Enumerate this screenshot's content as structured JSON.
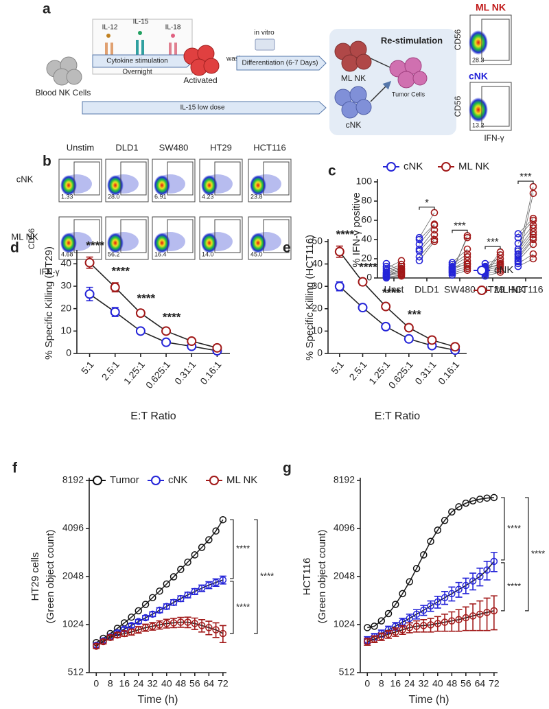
{
  "diagram": {
    "label": "a",
    "cytokines": [
      "IL-12",
      "IL-15",
      "IL-18"
    ],
    "stim_arrow": "Cytokine stimulation",
    "stim_time": "Overnight",
    "source": "Blood NK Cells",
    "activated": "Activated",
    "wash": "wash",
    "in_vitro": "in vitro",
    "diff_arrow": "Differentiation (6-7 Days)",
    "restim": "Re-stimulation",
    "ml_nk": "ML NK",
    "cnk": "cNK",
    "tumor": "Tumor Cells",
    "low_dose_arrow": "IL-15 low dose",
    "flow": [
      {
        "title": "ML NK",
        "percent": "28.3"
      },
      {
        "title": "cNK",
        "percent": "13.2"
      }
    ],
    "flow_y": "CD56",
    "flow_x": "IFN-γ"
  },
  "flow_grid": {
    "label": "b",
    "columns": [
      "Unstim",
      "DLD1",
      "SW480",
      "HT29",
      "HCT116"
    ],
    "rows": [
      {
        "name": "cNK",
        "values": [
          "1.33",
          "28.0",
          "6.91",
          "4.23",
          "23.8"
        ]
      },
      {
        "name": "ML NK",
        "values": [
          "4.68",
          "56.2",
          "16.4",
          "14.0",
          "45.0"
        ]
      }
    ],
    "y_label": "CD56",
    "x_label": "IFN-γ"
  },
  "chart_data": [
    {
      "type": "paired_scatter",
      "panel": "c",
      "y_label": "% IFN-γ positive",
      "legend": "top",
      "categories": [
        "Unst",
        "DLD1",
        "SW480",
        "HT29",
        "HCT116"
      ],
      "ylim": [
        0,
        100
      ],
      "yticks": [
        0,
        20,
        40,
        60,
        80,
        100
      ],
      "series": [
        {
          "name": "cNK",
          "color": "#2424d8",
          "values": [
            [
              0,
              1,
              2,
              3,
              4,
              5,
              6,
              8,
              10,
              12,
              15,
              2
            ],
            [
              18,
              22,
              28,
              30,
              35,
              40,
              42
            ],
            [
              3,
              5,
              7,
              9,
              10,
              12,
              14,
              16,
              8,
              6,
              11
            ],
            [
              2,
              4,
              6,
              8,
              10,
              12,
              15,
              5,
              7,
              9,
              11
            ],
            [
              12,
              15,
              18,
              20,
              22,
              25,
              28,
              30,
              36,
              42,
              46,
              17,
              24
            ]
          ]
        },
        {
          "name": "ML NK",
          "color": "#a11818",
          "values": [
            [
              2,
              3,
              5,
              6,
              8,
              10,
              12,
              14,
              18,
              4,
              7,
              9
            ],
            [
              38,
              40,
              45,
              50,
              55,
              56,
              68
            ],
            [
              8,
              10,
              12,
              15,
              18,
              22,
              25,
              30,
              42,
              44,
              14
            ],
            [
              6,
              8,
              10,
              12,
              14,
              17,
              20,
              24,
              27,
              15,
              13
            ],
            [
              20,
              25,
              35,
              40,
              42,
              45,
              48,
              52,
              55,
              60,
              62,
              88,
              95
            ]
          ]
        }
      ],
      "annotations": [
        "*",
        "***",
        "***",
        "***"
      ]
    },
    {
      "type": "line",
      "panel": "d",
      "y_label": "% Specific Killing (HT29)",
      "x_label": "E:T Ratio",
      "categories": [
        "5:1",
        "2.5:1",
        "1.25:1",
        "0.625:1",
        "0.31:1",
        "0.16:1"
      ],
      "ylim": [
        0,
        45
      ],
      "yticks": [
        0,
        10,
        20,
        30,
        40
      ],
      "series": [
        {
          "color": "#2424d8",
          "values": [
            26.5,
            18.5,
            10,
            5,
            3.2,
            1.2
          ],
          "errors": [
            3,
            2,
            1,
            0.8,
            0.5,
            0.4
          ]
        },
        {
          "color": "#a11818",
          "values": [
            40.5,
            29.5,
            18,
            10,
            5.5,
            2.5
          ],
          "errors": [
            2.5,
            2,
            1.5,
            1,
            0.6,
            0.5
          ]
        }
      ],
      "annotations": [
        "****",
        "****",
        "****",
        "****"
      ]
    },
    {
      "type": "line",
      "panel": "e",
      "y_label": "% Specific Killing (HCT116)",
      "x_label": "E:T Ratio",
      "legend": "right",
      "categories": [
        "5:1",
        "2.5:1",
        "1.25:1",
        "0.625:1",
        "0.31:1",
        "0.16:1"
      ],
      "ylim": [
        0,
        50
      ],
      "yticks": [
        0,
        10,
        20,
        30,
        40,
        50
      ],
      "series": [
        {
          "name": "cNK",
          "color": "#2424d8",
          "values": [
            30,
            20.5,
            12,
            6.5,
            3.5,
            1.5
          ],
          "errors": [
            2,
            1,
            0.8,
            0.6,
            0.5,
            0.4
          ]
        },
        {
          "name": "ML NK",
          "color": "#a11818",
          "values": [
            45.5,
            32,
            21,
            11.5,
            6,
            3
          ],
          "errors": [
            2.5,
            1.5,
            1,
            0.8,
            0.5,
            0.4
          ]
        }
      ],
      "annotations": [
        "****",
        "****",
        "****",
        "***"
      ]
    },
    {
      "type": "line",
      "panel": "f",
      "y_label": [
        "HT29 cells",
        "(Green object count)"
      ],
      "x_label": "Time (h)",
      "legend": "top",
      "log_scale": true,
      "log_base": 2,
      "x": [
        0,
        4,
        8,
        12,
        16,
        20,
        24,
        28,
        32,
        36,
        40,
        44,
        48,
        52,
        56,
        60,
        64,
        68,
        72
      ],
      "xlim": [
        -4,
        74
      ],
      "xticks": [
        0,
        8,
        16,
        24,
        32,
        40,
        48,
        56,
        64,
        72
      ],
      "ylim": [
        512,
        8192
      ],
      "yticks": [
        512,
        1024,
        2048,
        4096,
        8192
      ],
      "series": [
        {
          "name": "Tumor",
          "color": "#111111",
          "values": [
            790,
            840,
            900,
            970,
            1050,
            1140,
            1250,
            1370,
            1510,
            1660,
            1840,
            2040,
            2270,
            2520,
            2800,
            3120,
            3480,
            3950,
            4650
          ]
        },
        {
          "name": "cNK",
          "color": "#2424d8",
          "values": [
            760,
            810,
            860,
            910,
            960,
            1010,
            1070,
            1130,
            1190,
            1260,
            1330,
            1410,
            1490,
            1570,
            1650,
            1730,
            1810,
            1880,
            1950
          ],
          "errors": [
            20,
            20,
            20,
            25,
            25,
            30,
            30,
            35,
            40,
            45,
            50,
            55,
            60,
            65,
            70,
            80,
            90,
            100,
            110
          ]
        },
        {
          "name": "ML NK",
          "color": "#a11818",
          "values": [
            750,
            800,
            850,
            880,
            900,
            920,
            950,
            980,
            1000,
            1020,
            1040,
            1050,
            1060,
            1060,
            1040,
            1010,
            980,
            950,
            900
          ],
          "errors": [
            25,
            25,
            30,
            30,
            35,
            40,
            45,
            50,
            55,
            60,
            65,
            70,
            75,
            80,
            85,
            90,
            95,
            100,
            110
          ]
        }
      ],
      "annotations": [
        "****",
        "****",
        "****"
      ]
    },
    {
      "type": "line",
      "panel": "g",
      "y_label": [
        "HCT116",
        "(Green object count)"
      ],
      "x_label": "Time (h)",
      "log_scale": true,
      "log_base": 2,
      "x": [
        0,
        4,
        8,
        12,
        16,
        20,
        24,
        28,
        32,
        36,
        40,
        44,
        48,
        52,
        56,
        60,
        64,
        68,
        72
      ],
      "xlim": [
        -4,
        74
      ],
      "xticks": [
        0,
        8,
        16,
        24,
        32,
        40,
        48,
        56,
        64,
        72
      ],
      "ylim": [
        512,
        8192
      ],
      "yticks": [
        512,
        1024,
        2048,
        4096,
        8192
      ],
      "series": [
        {
          "color": "#111111",
          "values": [
            980,
            1000,
            1080,
            1200,
            1370,
            1600,
            1900,
            2300,
            2800,
            3400,
            4000,
            4600,
            5200,
            5600,
            5900,
            6100,
            6250,
            6350,
            6400
          ]
        },
        {
          "color": "#2424d8",
          "values": [
            820,
            860,
            900,
            950,
            1000,
            1060,
            1120,
            1190,
            1260,
            1340,
            1420,
            1510,
            1600,
            1700,
            1800,
            1920,
            2050,
            2250,
            2550
          ],
          "errors": [
            40,
            40,
            45,
            50,
            55,
            60,
            70,
            80,
            90,
            100,
            120,
            140,
            160,
            180,
            200,
            230,
            260,
            300,
            350
          ]
        },
        {
          "color": "#a11818",
          "values": [
            800,
            830,
            860,
            890,
            920,
            950,
            980,
            1000,
            1010,
            1020,
            1040,
            1060,
            1080,
            1100,
            1130,
            1160,
            1190,
            1220,
            1250
          ],
          "errors": [
            40,
            40,
            45,
            50,
            55,
            60,
            70,
            80,
            90,
            100,
            110,
            130,
            150,
            170,
            190,
            220,
            250,
            280,
            300
          ]
        }
      ],
      "annotations": [
        "****",
        "****",
        "****"
      ]
    }
  ]
}
